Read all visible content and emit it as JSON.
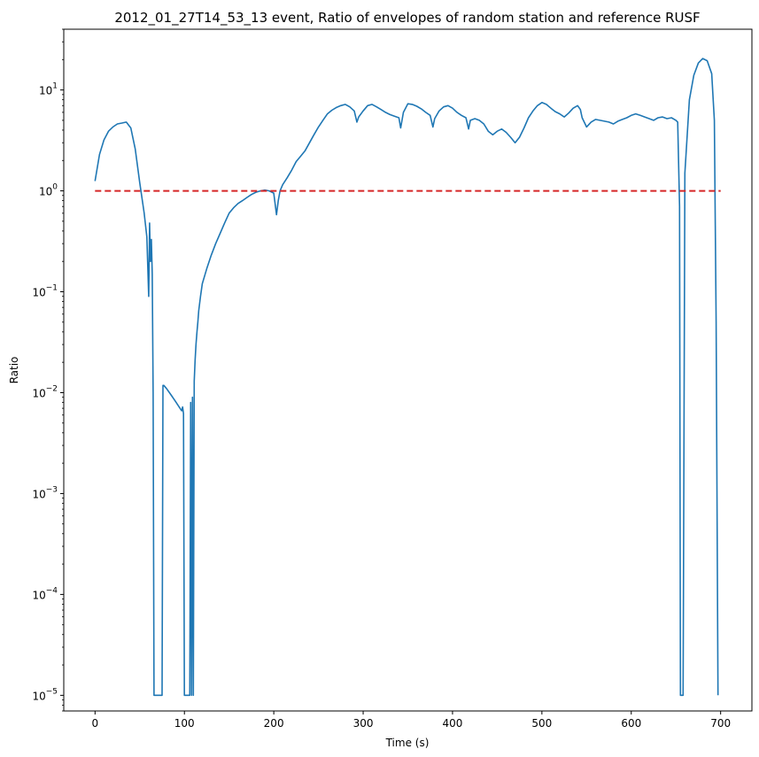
{
  "chart_data": {
    "type": "line",
    "title": "2012_01_27T14_53_13 event, Ratio of envelopes of random station and reference RUSF",
    "xlabel": "Time (s)",
    "ylabel": "Ratio",
    "yscale": "log",
    "xlim": [
      -35,
      735
    ],
    "ylim": [
      7e-06,
      40
    ],
    "xticks": [
      0,
      100,
      200,
      300,
      400,
      500,
      600,
      700
    ],
    "xtick_labels": [
      "0",
      "100",
      "200",
      "300",
      "400",
      "500",
      "600",
      "700"
    ],
    "yticks": [
      1e-05,
      0.0001,
      0.001,
      0.01,
      0.1,
      1,
      10
    ],
    "ytick_labels": [
      {
        "base": "10",
        "exp": "−5"
      },
      {
        "base": "10",
        "exp": "−4"
      },
      {
        "base": "10",
        "exp": "−3"
      },
      {
        "base": "10",
        "exp": "−2"
      },
      {
        "base": "10",
        "exp": "−1"
      },
      {
        "base": "10",
        "exp": "0"
      },
      {
        "base": "10",
        "exp": "1"
      }
    ],
    "grid": false,
    "colors": {
      "series": "#1f77b4",
      "reference": "#d62728"
    },
    "series": [
      {
        "style": "solid",
        "x": [
          0,
          5,
          10,
          15,
          20,
          25,
          30,
          35,
          40,
          45,
          50,
          55,
          58,
          60,
          61,
          62,
          63,
          64,
          65,
          66,
          67,
          68,
          69,
          75,
          76,
          77,
          80,
          85,
          90,
          95,
          97,
          98,
          99,
          100,
          106,
          107,
          108,
          109,
          110,
          111,
          112,
          113,
          114,
          115,
          116,
          118,
          120,
          125,
          130,
          135,
          140,
          145,
          150,
          155,
          160,
          165,
          170,
          175,
          180,
          185,
          190,
          195,
          200,
          203,
          205,
          207,
          210,
          215,
          220,
          225,
          230,
          235,
          240,
          245,
          250,
          255,
          260,
          265,
          270,
          275,
          280,
          285,
          290,
          293,
          295,
          300,
          305,
          310,
          315,
          320,
          325,
          330,
          335,
          340,
          342,
          345,
          350,
          355,
          360,
          365,
          370,
          375,
          378,
          380,
          385,
          390,
          395,
          400,
          405,
          410,
          415,
          418,
          420,
          425,
          430,
          435,
          440,
          445,
          450,
          455,
          460,
          465,
          470,
          475,
          480,
          485,
          490,
          495,
          500,
          505,
          510,
          515,
          520,
          525,
          530,
          535,
          540,
          543,
          545,
          550,
          555,
          560,
          565,
          570,
          575,
          580,
          585,
          590,
          595,
          600,
          605,
          610,
          615,
          620,
          625,
          630,
          635,
          640,
          645,
          650,
          652,
          654,
          655,
          656,
          658,
          660,
          665,
          670,
          675,
          680,
          685,
          690,
          693,
          695,
          697
        ],
        "y": [
          1.25,
          2.3,
          3.2,
          3.9,
          4.3,
          4.6,
          4.7,
          4.8,
          4.2,
          2.6,
          1.2,
          0.6,
          0.35,
          0.09,
          0.48,
          0.2,
          0.33,
          0.15,
          0.01,
          1e-05,
          1e-05,
          1e-05,
          1e-05,
          1e-05,
          0.0118,
          0.0118,
          0.011,
          0.0095,
          0.0082,
          0.007,
          0.0066,
          0.0072,
          0.0062,
          1e-05,
          1e-05,
          0.008,
          1e-05,
          0.009,
          1e-05,
          0.013,
          0.021,
          0.03,
          0.04,
          0.05,
          0.065,
          0.09,
          0.12,
          0.17,
          0.23,
          0.3,
          0.38,
          0.48,
          0.6,
          0.68,
          0.75,
          0.8,
          0.86,
          0.92,
          0.97,
          1.0,
          1.02,
          1.0,
          0.95,
          0.58,
          0.8,
          1.0,
          1.15,
          1.35,
          1.6,
          1.95,
          2.2,
          2.5,
          3.0,
          3.6,
          4.3,
          5.0,
          5.8,
          6.3,
          6.7,
          7.0,
          7.2,
          6.8,
          6.2,
          4.8,
          5.4,
          6.2,
          7.0,
          7.2,
          6.8,
          6.4,
          6.0,
          5.7,
          5.5,
          5.3,
          4.2,
          6.0,
          7.3,
          7.2,
          6.9,
          6.5,
          6.0,
          5.6,
          4.3,
          5.2,
          6.2,
          6.8,
          7.0,
          6.6,
          6.0,
          5.6,
          5.3,
          4.1,
          5.0,
          5.2,
          5.0,
          4.6,
          3.9,
          3.6,
          3.9,
          4.1,
          3.8,
          3.4,
          3.0,
          3.4,
          4.2,
          5.3,
          6.2,
          7.0,
          7.5,
          7.2,
          6.6,
          6.1,
          5.8,
          5.4,
          5.9,
          6.6,
          7.0,
          6.4,
          5.3,
          4.3,
          4.8,
          5.1,
          5.0,
          4.9,
          4.8,
          4.6,
          4.9,
          5.1,
          5.3,
          5.6,
          5.8,
          5.6,
          5.4,
          5.2,
          5.0,
          5.3,
          5.4,
          5.2,
          5.3,
          5.0,
          4.8,
          0.7,
          1e-05,
          1e-05,
          1e-05,
          1.5,
          8.0,
          14.0,
          18.5,
          20.5,
          19.5,
          14.5,
          5.0,
          0.05,
          1e-05
        ]
      },
      {
        "style": "dashed",
        "x": [
          0,
          700
        ],
        "y": [
          1,
          1
        ]
      }
    ]
  }
}
